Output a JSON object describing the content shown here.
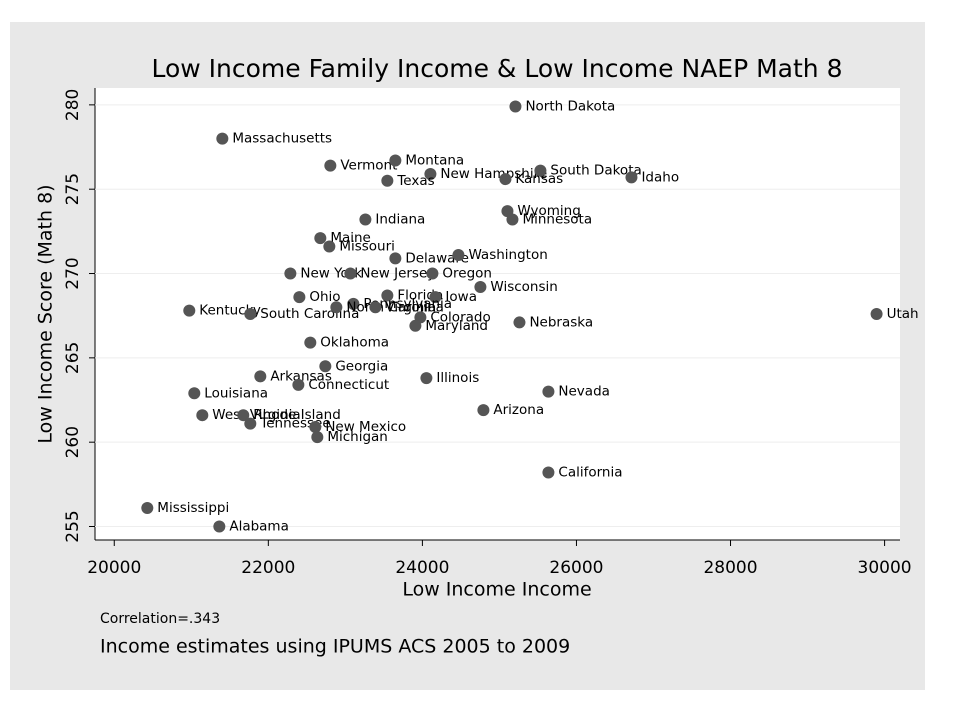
{
  "chart_data": {
    "type": "scatter",
    "title": "Low Income Family Income & Low Income NAEP Math 8",
    "x_label": "Low Income Income",
    "y_label": "Low Income Score (Math 8)",
    "notes": [
      "Correlation=.343",
      "Income estimates using IPUMS ACS 2005 to 2009"
    ],
    "color": "#555555",
    "labels": [
      "North Dakota",
      "Massachusetts",
      "Vermont",
      "Montana",
      "New Hampshire",
      "Texas",
      "South Dakota",
      "Kansas",
      "Idaho",
      "Wyoming",
      "Minnesota",
      "Indiana",
      "Maine",
      "Missouri",
      "Delaware",
      "Washington",
      "New York",
      "New Jersey",
      "Oregon",
      "Ohio",
      "Florida",
      "Iowa",
      "Wisconsin",
      "Pennsylvania",
      "Kentucky",
      "South Carolina",
      "North Carolina",
      "Virginia",
      "Colorado",
      "Maryland",
      "Nebraska",
      "Utah",
      "Oklahoma",
      "Georgia",
      "Arkansas",
      "Connecticut",
      "Illinois",
      "Louisiana",
      "Nevada",
      "West Virginia",
      "Arizona",
      "Rhode Island",
      "Tennessee",
      "New Mexico",
      "Michigan",
      "California",
      "Mississippi",
      "Alabama"
    ],
    "x": [
      25208,
      21403,
      22805,
      23649,
      24104,
      23545,
      25532,
      25078,
      26714,
      25104,
      25169,
      23260,
      22675,
      22792,
      23649,
      24468,
      22286,
      23065,
      24130,
      22403,
      23545,
      24169,
      24753,
      23104,
      20974,
      21766,
      22883,
      23390,
      23974,
      23909,
      25260,
      29896,
      22545,
      22740,
      21896,
      22390,
      24052,
      21039,
      25636,
      21143,
      24792,
      21675,
      21766,
      22610,
      22636,
      25636,
      20429,
      21364
    ],
    "values": [
      279.9,
      278.0,
      276.4,
      276.7,
      275.9,
      275.5,
      276.1,
      275.6,
      275.7,
      273.7,
      273.2,
      273.2,
      272.1,
      271.6,
      270.9,
      271.1,
      270.0,
      270.0,
      270.0,
      268.6,
      268.7,
      268.6,
      269.2,
      268.2,
      267.8,
      267.6,
      268.0,
      268.0,
      267.4,
      266.9,
      267.1,
      267.6,
      265.9,
      264.5,
      263.9,
      263.4,
      263.8,
      262.9,
      263.0,
      261.6,
      261.9,
      261.6,
      261.1,
      260.9,
      260.3,
      258.2,
      256.1,
      255.0
    ],
    "xlim": [
      19750,
      30200
    ],
    "ylim": [
      254.2,
      281
    ],
    "xticks": [
      20000,
      22000,
      24000,
      26000,
      28000,
      30000
    ],
    "yticks": [
      255,
      260,
      265,
      270,
      275,
      280
    ]
  }
}
